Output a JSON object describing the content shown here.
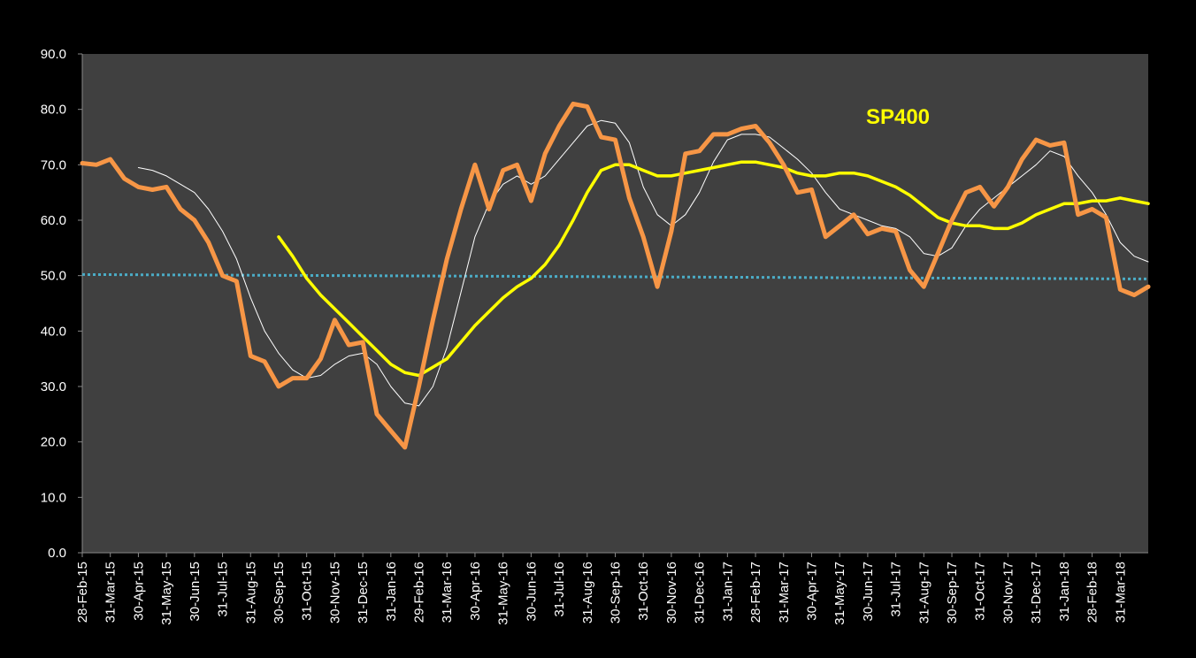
{
  "chart_data": {
    "type": "line",
    "annotation": "SP400",
    "ylim": [
      0,
      90
    ],
    "yticks": [
      {
        "value": 0,
        "label": "0.0"
      },
      {
        "value": 10,
        "label": "10.0"
      },
      {
        "value": 20,
        "label": "20.0"
      },
      {
        "value": 30,
        "label": "30.0"
      },
      {
        "value": 40,
        "label": "40.0"
      },
      {
        "value": 50,
        "label": "50.0"
      },
      {
        "value": 60,
        "label": "60.0"
      },
      {
        "value": 70,
        "label": "70.0"
      },
      {
        "value": 80,
        "label": "80.0"
      },
      {
        "value": 90,
        "label": "90.0"
      }
    ],
    "categories": [
      "28-Feb-15",
      null,
      "31-Mar-15",
      null,
      "30-Apr-15",
      null,
      "31-May-15",
      null,
      "30-Jun-15",
      null,
      "31-Jul-15",
      null,
      "31-Aug-15",
      null,
      "30-Sep-15",
      null,
      "31-Oct-15",
      null,
      "30-Nov-15",
      null,
      "31-Dec-15",
      null,
      "31-Jan-16",
      null,
      "29-Feb-16",
      null,
      "31-Mar-16",
      null,
      "30-Apr-16",
      null,
      "31-May-16",
      null,
      "30-Jun-16",
      null,
      "31-Jul-16",
      null,
      "31-Aug-16",
      null,
      "30-Sep-16",
      null,
      "31-Oct-16",
      null,
      "30-Nov-16",
      null,
      "31-Dec-16",
      null,
      "31-Jan-17",
      null,
      "28-Feb-17",
      null,
      "31-Mar-17",
      null,
      "30-Apr-17",
      null,
      "31-May-17",
      null,
      "30-Jun-17",
      null,
      "31-Jul-17",
      null,
      "31-Aug-17",
      null,
      "30-Sep-17",
      null,
      "31-Oct-17",
      null,
      "30-Nov-17",
      null,
      "31-Dec-17",
      null,
      "31-Jan-18",
      null,
      "28-Feb-18",
      null,
      "31-Mar-18",
      null,
      null
    ],
    "series": [
      {
        "color": "#ffffff",
        "width": 1,
        "values": [
          null,
          null,
          null,
          null,
          69.5,
          69,
          68,
          66.5,
          65,
          62,
          58,
          53,
          46,
          40,
          36,
          33,
          31.5,
          32,
          34,
          35.5,
          36,
          34,
          30,
          27,
          26.5,
          30,
          37,
          47,
          57,
          63,
          66.5,
          68,
          66.5,
          68,
          71,
          74,
          77,
          78,
          77.5,
          74,
          66,
          61,
          59,
          61,
          65,
          70.5,
          74.5,
          75.5,
          75.5,
          75,
          73,
          71,
          68.5,
          65,
          62,
          61,
          60,
          59,
          58.5,
          57,
          54,
          53.5,
          55,
          59,
          62,
          64,
          66,
          68,
          70,
          72.5,
          71.5,
          68,
          65,
          61,
          56,
          53.5,
          52.5
        ]
      },
      {
        "color": "#ffff00",
        "width": 3.5,
        "values": [
          null,
          null,
          null,
          null,
          null,
          null,
          null,
          null,
          null,
          null,
          null,
          null,
          null,
          null,
          57,
          53.5,
          49.5,
          46.5,
          44,
          41.5,
          39,
          36.5,
          34,
          32.5,
          32,
          33.5,
          35,
          38,
          41,
          43.5,
          46,
          48,
          49.5,
          52,
          55.5,
          60,
          65,
          69,
          70,
          70,
          69,
          68,
          68,
          68.5,
          69,
          69.5,
          70,
          70.5,
          70.5,
          70,
          69.5,
          68.5,
          68,
          68,
          68.5,
          68.5,
          68,
          67,
          66,
          64.5,
          62.5,
          60.5,
          59.5,
          59,
          59,
          58.5,
          58.5,
          59.5,
          61,
          62,
          63,
          63,
          63.5,
          63.5,
          64,
          63.5,
          63
        ]
      },
      {
        "color": "#f79646",
        "width": 5,
        "values": [
          70.3,
          70,
          71,
          67.5,
          66,
          65.5,
          66,
          62,
          60,
          56,
          50,
          49,
          35.5,
          34.5,
          30,
          31.5,
          31.5,
          35,
          42,
          37.5,
          38,
          25,
          22,
          19,
          30,
          42,
          53,
          62,
          70,
          62,
          69,
          70,
          63.5,
          72,
          77,
          81,
          80.5,
          75,
          74.5,
          64,
          57,
          48,
          58,
          72,
          72.5,
          75.5,
          75.5,
          76.5,
          77,
          74,
          70,
          65,
          65.5,
          57,
          59,
          61,
          57.5,
          58.5,
          58,
          51,
          48,
          54,
          60,
          65,
          66,
          62.5,
          66,
          71,
          74.5,
          73.5,
          74,
          61,
          62,
          60.5,
          47.5,
          46.5,
          48
        ]
      }
    ],
    "trend": {
      "color": "#4bacc6",
      "start": 50.2,
      "end": 49.4
    }
  }
}
